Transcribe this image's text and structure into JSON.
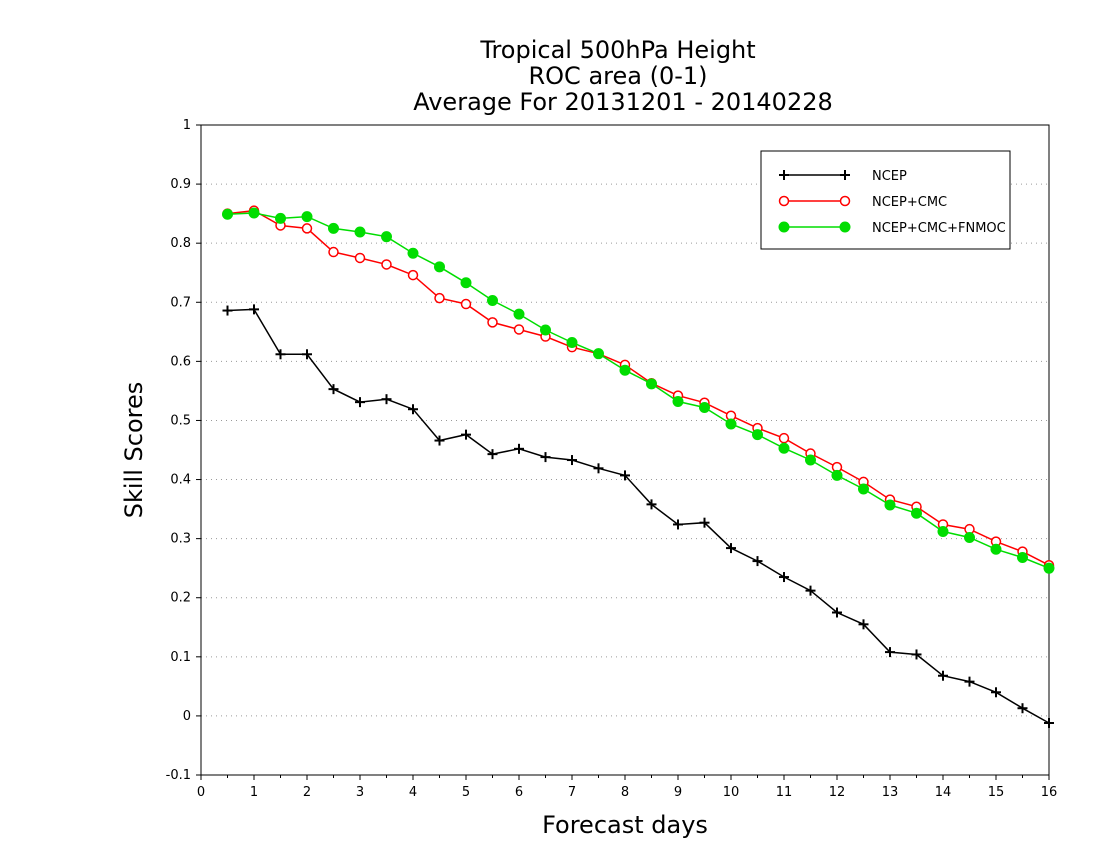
{
  "chart_data": {
    "type": "line",
    "title": [
      "Tropical 500hPa Height",
      "ROC area (0-1)",
      "Average For 20131201 - 20140228"
    ],
    "xlabel": "Forecast days",
    "ylabel": "Skill Scores",
    "xlim": [
      0,
      16
    ],
    "ylim": [
      -0.1,
      1
    ],
    "xticks": [
      "0",
      "1",
      "2",
      "3",
      "4",
      "5",
      "6",
      "7",
      "8",
      "9",
      "10",
      "11",
      "12",
      "13",
      "14",
      "15",
      "16"
    ],
    "yticks": [
      "-0.1",
      "0",
      "0.1",
      "0.2",
      "0.3",
      "0.4",
      "0.5",
      "0.6",
      "0.7",
      "0.8",
      "0.9",
      "1"
    ],
    "grid": true,
    "legend_position": "top-right",
    "x": [
      0.5,
      1,
      1.5,
      2,
      2.5,
      3,
      3.5,
      4,
      4.5,
      5,
      5.5,
      6,
      6.5,
      7,
      7.5,
      8,
      8.5,
      9,
      9.5,
      10,
      10.5,
      11,
      11.5,
      12,
      12.5,
      13,
      13.5,
      14,
      14.5,
      15,
      15.5,
      16
    ],
    "series": [
      {
        "name": "NCEP",
        "color": "#000000",
        "marker": "plus",
        "values": [
          0.686,
          0.688,
          0.612,
          0.612,
          0.553,
          0.531,
          0.536,
          0.519,
          0.466,
          0.476,
          0.443,
          0.452,
          0.438,
          0.433,
          0.419,
          0.407,
          0.358,
          0.324,
          0.327,
          0.284,
          0.262,
          0.235,
          0.212,
          0.175,
          0.155,
          0.108,
          0.104,
          0.068,
          0.058,
          0.04,
          0.013,
          -0.012
        ]
      },
      {
        "name": "NCEP+CMC",
        "color": "#ff0000",
        "marker": "open-circle",
        "values": [
          0.85,
          0.855,
          0.83,
          0.825,
          0.785,
          0.775,
          0.764,
          0.746,
          0.707,
          0.697,
          0.666,
          0.654,
          0.642,
          0.624,
          0.613,
          0.594,
          0.563,
          0.542,
          0.53,
          0.508,
          0.487,
          0.47,
          0.444,
          0.421,
          0.396,
          0.366,
          0.354,
          0.324,
          0.316,
          0.295,
          0.278,
          0.255
        ]
      },
      {
        "name": "NCEP+CMC+FNMOC",
        "color": "#00dd00",
        "marker": "filled-circle",
        "values": [
          0.849,
          0.851,
          0.842,
          0.845,
          0.825,
          0.819,
          0.811,
          0.783,
          0.76,
          0.733,
          0.703,
          0.68,
          0.653,
          0.632,
          0.613,
          0.585,
          0.562,
          0.532,
          0.522,
          0.494,
          0.476,
          0.453,
          0.433,
          0.407,
          0.384,
          0.357,
          0.343,
          0.312,
          0.302,
          0.282,
          0.268,
          0.25
        ]
      }
    ]
  }
}
